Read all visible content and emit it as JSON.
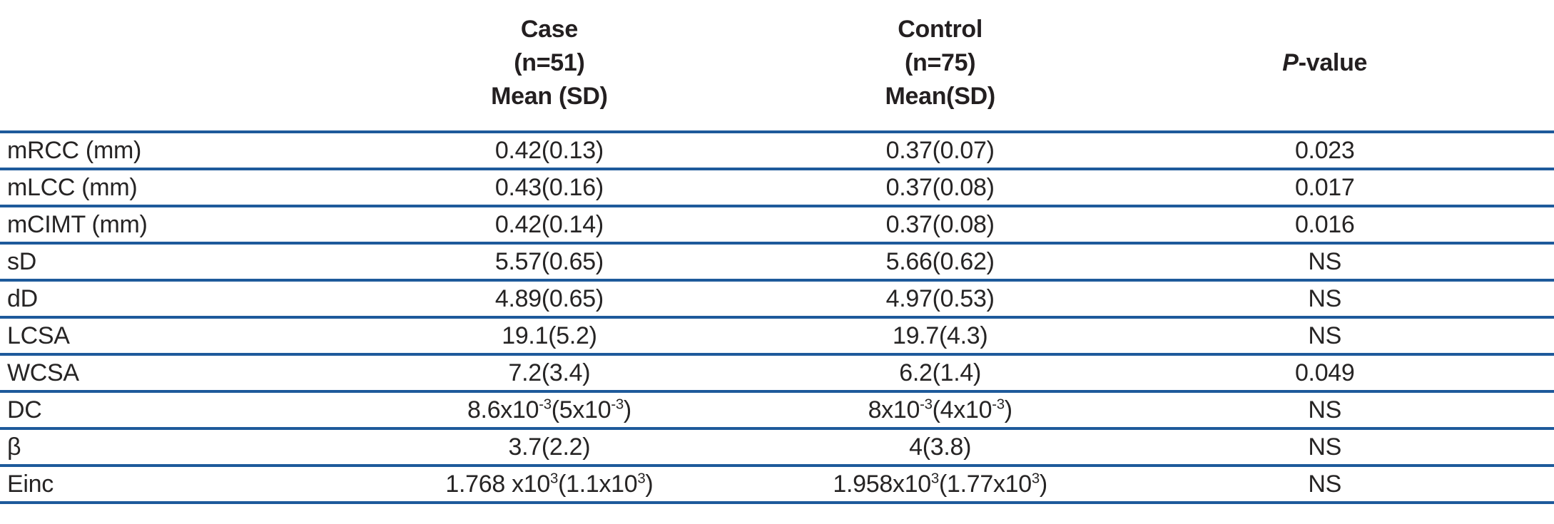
{
  "table": {
    "header": {
      "case": {
        "line1": "Case",
        "line2": "(n=51)",
        "line3": "Mean (SD)"
      },
      "control": {
        "line1": "Control",
        "line2": "(n=75)",
        "line3": "Mean(SD)"
      },
      "pvalue": {
        "italic_part": "P",
        "rest": "-value"
      }
    },
    "rows": [
      {
        "label": "mRCC (mm)",
        "case": "0.42(0.13)",
        "control": "0.37(0.07)",
        "p": "0.023"
      },
      {
        "label": "mLCC (mm)",
        "case": "0.43(0.16)",
        "control": "0.37(0.08)",
        "p": "0.017"
      },
      {
        "label": "mCIMT (mm)",
        "case": "0.42(0.14)",
        "control": "0.37(0.08)",
        "p": "0.016"
      },
      {
        "label": "sD",
        "case": "5.57(0.65)",
        "control": "5.66(0.62)",
        "p": "NS"
      },
      {
        "label": "dD",
        "case": "4.89(0.65)",
        "control": "4.97(0.53)",
        "p": "NS"
      },
      {
        "label": "LCSA",
        "case": "19.1(5.2)",
        "control": "19.7(4.3)",
        "p": "NS"
      },
      {
        "label": "WCSA",
        "case": "7.2(3.4)",
        "control": "6.2(1.4)",
        "p": "0.049"
      },
      {
        "label": "DC",
        "case": "8.6x10^-3^(5x10^-3^)",
        "control": "8x10^-3^(4x10^-3^)",
        "p": "NS"
      },
      {
        "label": "β",
        "case": "3.7(2.2)",
        "control": "4(3.8)",
        "p": "NS"
      },
      {
        "label": "Einc",
        "case": "1.768 x10^3^(1.1x10^3^)",
        "control": "1.958x10^3^(1.77x10^3^)",
        "p": "NS"
      }
    ],
    "colors": {
      "rule_blue": "#1e5a9b",
      "text": "#231f20"
    }
  }
}
